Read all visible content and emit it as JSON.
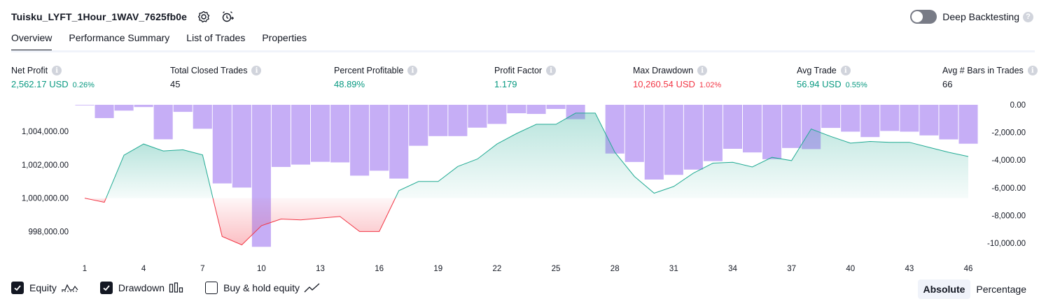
{
  "header": {
    "strategy_title": "Tuisku_LYFT_1Hour_1WAV_7625fb0e",
    "icons": [
      "settings-icon",
      "add-alert-icon"
    ]
  },
  "deep_backtesting": {
    "label": "Deep Backtesting",
    "enabled": false,
    "help": "?"
  },
  "tabs": [
    {
      "label": "Overview",
      "active": true
    },
    {
      "label": "Performance Summary",
      "active": false
    },
    {
      "label": "List of Trades",
      "active": false
    },
    {
      "label": "Properties",
      "active": false
    }
  ],
  "metrics": {
    "info_glyph": "i",
    "net_profit": {
      "label": "Net Profit",
      "value": "2,562.17 USD",
      "pct": "0.26%"
    },
    "total_closed_trades": {
      "label": "Total Closed Trades",
      "value": "45"
    },
    "percent_profitable": {
      "label": "Percent Profitable",
      "value": "48.89%"
    },
    "profit_factor": {
      "label": "Profit Factor",
      "value": "1.179"
    },
    "max_drawdown": {
      "label": "Max Drawdown",
      "value": "10,260.54 USD",
      "pct": "1.02%"
    },
    "avg_trade": {
      "label": "Avg Trade",
      "value": "56.94 USD",
      "pct": "0.55%"
    },
    "avg_bars": {
      "label": "Avg # Bars in Trades",
      "value": "66"
    }
  },
  "chart_data": {
    "type": "line",
    "x": [
      1,
      2,
      3,
      4,
      5,
      6,
      7,
      8,
      9,
      10,
      11,
      12,
      13,
      14,
      15,
      16,
      17,
      18,
      19,
      20,
      21,
      22,
      23,
      24,
      25,
      26,
      27,
      28,
      29,
      30,
      31,
      32,
      33,
      34,
      35,
      36,
      37,
      38,
      39,
      40,
      41,
      42,
      43,
      44,
      45,
      46
    ],
    "x_ticks": [
      1,
      4,
      7,
      10,
      13,
      16,
      19,
      22,
      25,
      28,
      31,
      34,
      37,
      40,
      43,
      46
    ],
    "equity": {
      "baseline": 1000000,
      "values": [
        1000000,
        999750,
        1002580,
        1003250,
        1002830,
        1002900,
        1002600,
        997700,
        997200,
        998350,
        998750,
        998700,
        998800,
        998900,
        998000,
        998000,
        1000450,
        1001000,
        1001000,
        1001900,
        1002350,
        1003250,
        1003880,
        1004430,
        1004430,
        1005100,
        1005100,
        1002750,
        1001300,
        1000300,
        1000700,
        1001500,
        1002100,
        1002150,
        1001870,
        1002450,
        1002250,
        1004150,
        1003700,
        1003300,
        1003400,
        1003350,
        1003350,
        1003050,
        1002750,
        1002500
      ]
    },
    "drawdown": {
      "values": [
        -40,
        -960,
        -420,
        -160,
        -2490,
        -510,
        -1730,
        -5680,
        -5980,
        -10260,
        -4490,
        -4320,
        -4120,
        -4160,
        -5120,
        -4760,
        -5330,
        -2960,
        -2260,
        -2260,
        -1650,
        -1380,
        -610,
        -660,
        -300,
        -1040,
        0,
        -3520,
        -4130,
        -5400,
        -5060,
        -4680,
        -4070,
        -3180,
        -3440,
        -3930,
        -3120,
        -3200,
        -1670,
        -1940,
        -2330,
        -1890,
        -1940,
        -2210,
        -2500,
        -2810
      ]
    },
    "y_left_ticks": [
      "1,004,000.00",
      "1,002,000.00",
      "1,000,000.00",
      "998,000.00"
    ],
    "y_left_tick_values": [
      1004000,
      1002000,
      1000000,
      998000
    ],
    "y_left_range": [
      996800,
      1005600
    ],
    "y_right_ticks": [
      "0.00",
      "-2,000.00",
      "-4,000.00",
      "-6,000.00",
      "-8,000.00",
      "-10,000.00"
    ],
    "y_right_tick_values": [
      0,
      -2000,
      -4000,
      -6000,
      -8000,
      -10000
    ],
    "y_right_range": [
      -10600,
      0
    ],
    "colors": {
      "equity_up": "#22ab94",
      "equity_down": "#f23645",
      "drawdown_bar": "#d1b3ff",
      "drawdown_overlap": "#a9a3e0"
    },
    "grid": false
  },
  "legend": {
    "items": [
      {
        "label": "Equity",
        "checked": true,
        "icon": "equity-line-icon"
      },
      {
        "label": "Drawdown",
        "checked": true,
        "icon": "drawdown-bars-icon"
      },
      {
        "label": "Buy & hold equity",
        "checked": false,
        "icon": "buy-hold-line-icon"
      }
    ]
  },
  "modes": [
    {
      "label": "Absolute",
      "active": true
    },
    {
      "label": "Percentage",
      "active": false
    }
  ]
}
